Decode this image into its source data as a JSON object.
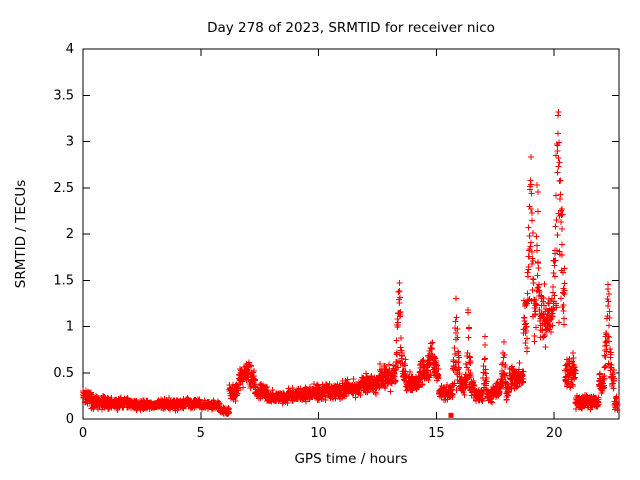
{
  "page": {
    "background": "#ffffff",
    "text_color": "#000000"
  },
  "chart_data": {
    "type": "scatter",
    "title": "Day 278 of 2023, SRMTID for receiver nico",
    "xlabel": "GPS time / hours",
    "ylabel": "SRMTID / TECUs",
    "xlim": [
      0,
      22.75
    ],
    "ylim": [
      0,
      4
    ],
    "xticks": [
      0,
      5,
      10,
      15,
      20
    ],
    "yticks": [
      0,
      0.5,
      1,
      1.5,
      2,
      2.5,
      3,
      3.5,
      4
    ],
    "marker": "plus",
    "marker_color": "#ff0000",
    "axis_color": "#000000",
    "grid": false,
    "legend": "none",
    "sampling": {
      "x_start": 0,
      "x_end": 22.69,
      "step": 0.015,
      "passes": 2,
      "seed": 1000
    },
    "baseline_segments": [
      [
        0.0,
        0.35,
        0.25,
        0.1
      ],
      [
        0.35,
        1.2,
        0.18,
        0.09
      ],
      [
        1.2,
        2.2,
        0.17,
        0.08
      ],
      [
        2.2,
        3.2,
        0.15,
        0.07
      ],
      [
        3.2,
        4.2,
        0.16,
        0.08
      ],
      [
        4.2,
        5.0,
        0.17,
        0.07
      ],
      [
        5.0,
        5.8,
        0.15,
        0.06
      ],
      [
        5.8,
        6.2,
        0.09,
        0.05
      ],
      [
        6.2,
        6.6,
        0.28,
        0.13
      ],
      [
        6.6,
        7.3,
        0.42,
        0.16
      ],
      [
        7.3,
        7.8,
        0.3,
        0.11
      ],
      [
        7.8,
        8.6,
        0.23,
        0.09
      ],
      [
        8.6,
        9.4,
        0.26,
        0.1
      ],
      [
        9.4,
        10.2,
        0.28,
        0.11
      ],
      [
        10.2,
        11.0,
        0.3,
        0.12
      ],
      [
        11.0,
        11.8,
        0.33,
        0.13
      ],
      [
        11.8,
        12.6,
        0.38,
        0.14
      ],
      [
        12.6,
        13.2,
        0.45,
        0.16
      ],
      [
        13.2,
        13.7,
        0.5,
        0.18
      ],
      [
        13.7,
        14.3,
        0.4,
        0.14
      ],
      [
        14.3,
        15.1,
        0.5,
        0.18
      ],
      [
        15.1,
        15.7,
        0.28,
        0.1
      ],
      [
        15.7,
        16.6,
        0.35,
        0.14
      ],
      [
        16.6,
        17.4,
        0.25,
        0.11
      ],
      [
        17.4,
        18.1,
        0.3,
        0.13
      ],
      [
        18.1,
        18.7,
        0.45,
        0.18
      ],
      [
        18.7,
        19.2,
        1.1,
        0.45
      ],
      [
        19.2,
        19.9,
        1.1,
        0.4
      ],
      [
        19.9,
        20.45,
        1.3,
        0.5
      ],
      [
        20.45,
        20.9,
        0.5,
        0.25
      ],
      [
        20.9,
        21.9,
        0.18,
        0.1
      ],
      [
        21.9,
        22.55,
        0.4,
        0.18
      ],
      [
        22.55,
        22.7,
        0.18,
        0.1
      ]
    ],
    "spikes": [
      [
        6.95,
        0.35,
        0.18
      ],
      [
        13.42,
        0.15,
        1.15
      ],
      [
        14.8,
        0.25,
        0.35
      ],
      [
        15.85,
        0.18,
        1.05
      ],
      [
        16.35,
        0.14,
        0.9
      ],
      [
        17.05,
        0.1,
        0.8
      ],
      [
        17.85,
        0.12,
        0.6
      ],
      [
        19.0,
        0.16,
        2.1
      ],
      [
        19.3,
        0.1,
        1.5
      ],
      [
        20.18,
        0.24,
        2.4
      ],
      [
        22.28,
        0.18,
        1.25
      ]
    ],
    "outliers": [
      [
        15.62,
        0.04
      ]
    ]
  }
}
